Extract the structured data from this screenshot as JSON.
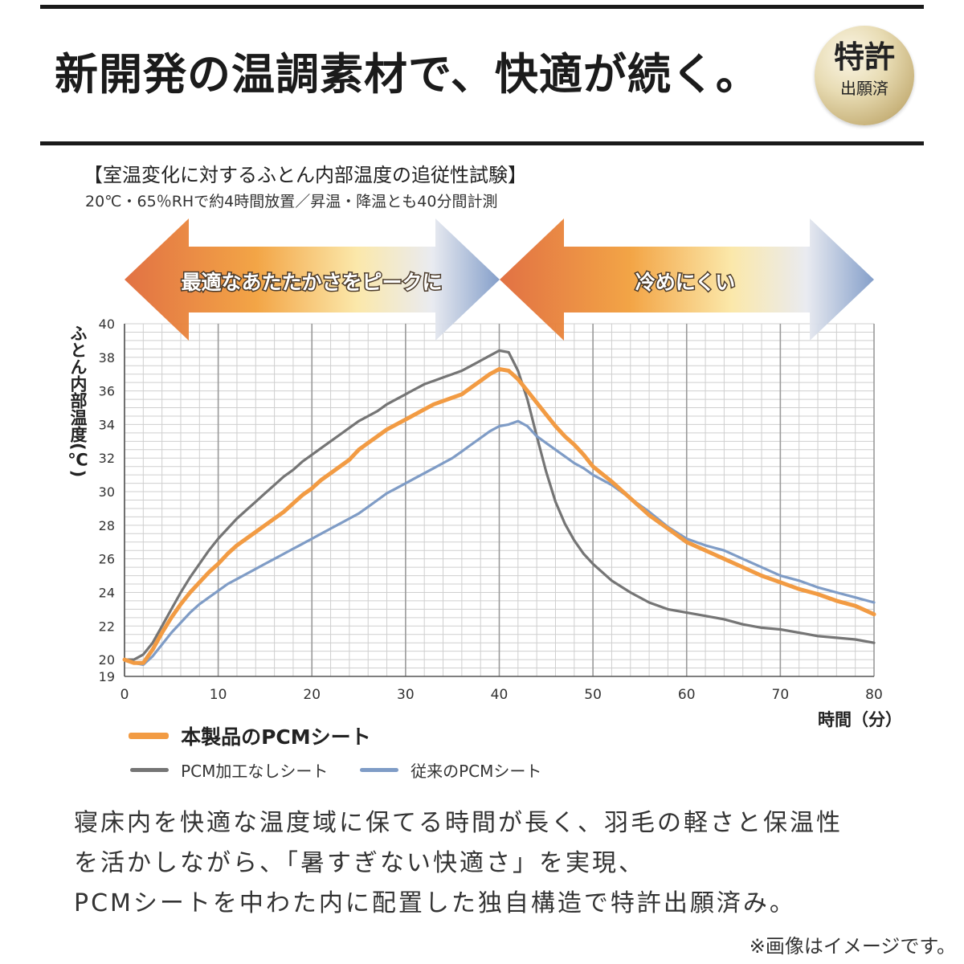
{
  "header": {
    "headline": "新開発の温調素材で、快適が続く。",
    "seal_big": "特許",
    "seal_small": "出願済"
  },
  "test": {
    "title": "【室温変化に対するふとん内部温度の追従性試験】",
    "conditions": "20℃・65％RHで約4時間放置／昇温・降温とも40分間計測"
  },
  "banners": {
    "left": "最適なあたたかさをピークに",
    "right": "冷めにくい"
  },
  "chart_data": {
    "type": "line",
    "xlabel": "時間（分）",
    "ylabel": "ふとん内部温度(℃)",
    "xlim": [
      0,
      80
    ],
    "ylim": [
      19,
      40
    ],
    "xticks": [
      0,
      10,
      20,
      30,
      40,
      50,
      60,
      70,
      80
    ],
    "yticks": [
      19,
      20,
      22,
      24,
      26,
      28,
      30,
      32,
      34,
      36,
      38,
      40
    ],
    "grid": true,
    "series": [
      {
        "name": "本製品のPCMシート",
        "color": "#f29b43",
        "x": [
          0,
          1,
          2,
          3,
          4,
          5,
          6,
          7,
          8,
          9,
          10,
          11,
          12,
          13,
          14,
          15,
          16,
          17,
          18,
          19,
          20,
          21,
          22,
          23,
          24,
          25,
          26,
          27,
          28,
          29,
          30,
          31,
          32,
          33,
          34,
          35,
          36,
          37,
          38,
          39,
          40,
          41,
          42,
          43,
          44,
          45,
          46,
          47,
          48,
          49,
          50,
          52,
          54,
          56,
          58,
          60,
          62,
          64,
          66,
          68,
          70,
          72,
          74,
          76,
          78,
          80
        ],
        "y": [
          20.0,
          19.8,
          19.8,
          20.6,
          21.6,
          22.5,
          23.3,
          24.0,
          24.6,
          25.2,
          25.7,
          26.3,
          26.8,
          27.2,
          27.6,
          28.0,
          28.4,
          28.8,
          29.3,
          29.8,
          30.2,
          30.7,
          31.1,
          31.5,
          31.9,
          32.5,
          32.9,
          33.3,
          33.7,
          34.0,
          34.3,
          34.6,
          34.9,
          35.2,
          35.4,
          35.6,
          35.8,
          36.2,
          36.6,
          37.0,
          37.3,
          37.2,
          36.7,
          36.0,
          35.3,
          34.6,
          33.9,
          33.3,
          32.8,
          32.2,
          31.5,
          30.6,
          29.6,
          28.6,
          27.8,
          27.0,
          26.5,
          26.0,
          25.5,
          25.0,
          24.6,
          24.2,
          23.9,
          23.5,
          23.2,
          22.7
        ]
      },
      {
        "name": "PCM加工なしシート",
        "color": "#757575",
        "x": [
          0,
          1,
          2,
          3,
          4,
          5,
          6,
          7,
          8,
          9,
          10,
          11,
          12,
          13,
          14,
          15,
          16,
          17,
          18,
          19,
          20,
          21,
          22,
          23,
          24,
          25,
          26,
          27,
          28,
          29,
          30,
          31,
          32,
          33,
          34,
          35,
          36,
          37,
          38,
          39,
          40,
          41,
          42,
          43,
          44,
          45,
          46,
          47,
          48,
          49,
          50,
          52,
          54,
          56,
          58,
          60,
          62,
          64,
          66,
          68,
          70,
          72,
          74,
          76,
          78,
          80
        ],
        "y": [
          20.0,
          20.0,
          20.3,
          21.0,
          22.0,
          23.0,
          24.0,
          24.9,
          25.7,
          26.5,
          27.2,
          27.8,
          28.4,
          28.9,
          29.4,
          29.9,
          30.4,
          30.9,
          31.3,
          31.8,
          32.2,
          32.6,
          33.0,
          33.4,
          33.8,
          34.2,
          34.5,
          34.8,
          35.2,
          35.5,
          35.8,
          36.1,
          36.4,
          36.6,
          36.8,
          37.0,
          37.2,
          37.5,
          37.8,
          38.1,
          38.4,
          38.3,
          37.2,
          35.5,
          33.3,
          31.2,
          29.4,
          28.1,
          27.1,
          26.3,
          25.7,
          24.7,
          24.0,
          23.4,
          23.0,
          22.8,
          22.6,
          22.4,
          22.1,
          21.9,
          21.8,
          21.6,
          21.4,
          21.3,
          21.2,
          21.0
        ]
      },
      {
        "name": "従来のPCMシート",
        "color": "#7f9cc6",
        "x": [
          0,
          1,
          2,
          3,
          4,
          5,
          6,
          7,
          8,
          9,
          10,
          11,
          12,
          13,
          14,
          15,
          16,
          17,
          18,
          19,
          20,
          21,
          22,
          23,
          24,
          25,
          26,
          27,
          28,
          29,
          30,
          31,
          32,
          33,
          34,
          35,
          36,
          37,
          38,
          39,
          40,
          41,
          42,
          43,
          44,
          45,
          46,
          47,
          48,
          49,
          50,
          52,
          54,
          56,
          58,
          60,
          62,
          64,
          66,
          68,
          70,
          72,
          74,
          76,
          78,
          80
        ],
        "y": [
          20.0,
          19.8,
          19.7,
          20.2,
          20.9,
          21.6,
          22.2,
          22.8,
          23.3,
          23.7,
          24.1,
          24.5,
          24.8,
          25.1,
          25.4,
          25.7,
          26.0,
          26.3,
          26.6,
          26.9,
          27.2,
          27.5,
          27.8,
          28.1,
          28.4,
          28.7,
          29.1,
          29.5,
          29.9,
          30.2,
          30.5,
          30.8,
          31.1,
          31.4,
          31.7,
          32.0,
          32.4,
          32.8,
          33.2,
          33.6,
          33.9,
          34.0,
          34.2,
          33.9,
          33.3,
          32.9,
          32.5,
          32.1,
          31.7,
          31.4,
          31.0,
          30.4,
          29.6,
          28.8,
          27.9,
          27.2,
          26.8,
          26.5,
          26.0,
          25.5,
          25.0,
          24.7,
          24.3,
          24.0,
          23.7,
          23.4
        ]
      }
    ]
  },
  "legend": {
    "main": "本製品のPCMシート",
    "sub1": "PCM加工なしシート",
    "sub2": "従来のPCMシート"
  },
  "body": {
    "line1": "寝床内を快適な温度域に保てる時間が長く、羽毛の軽さと保温性",
    "line2": "を活かしながら、「暑すぎない快適さ」を実現、",
    "line3": "PCMシートを中わた内に配置した独自構造で特許出願済み。"
  },
  "note": "※画像はイメージです。"
}
